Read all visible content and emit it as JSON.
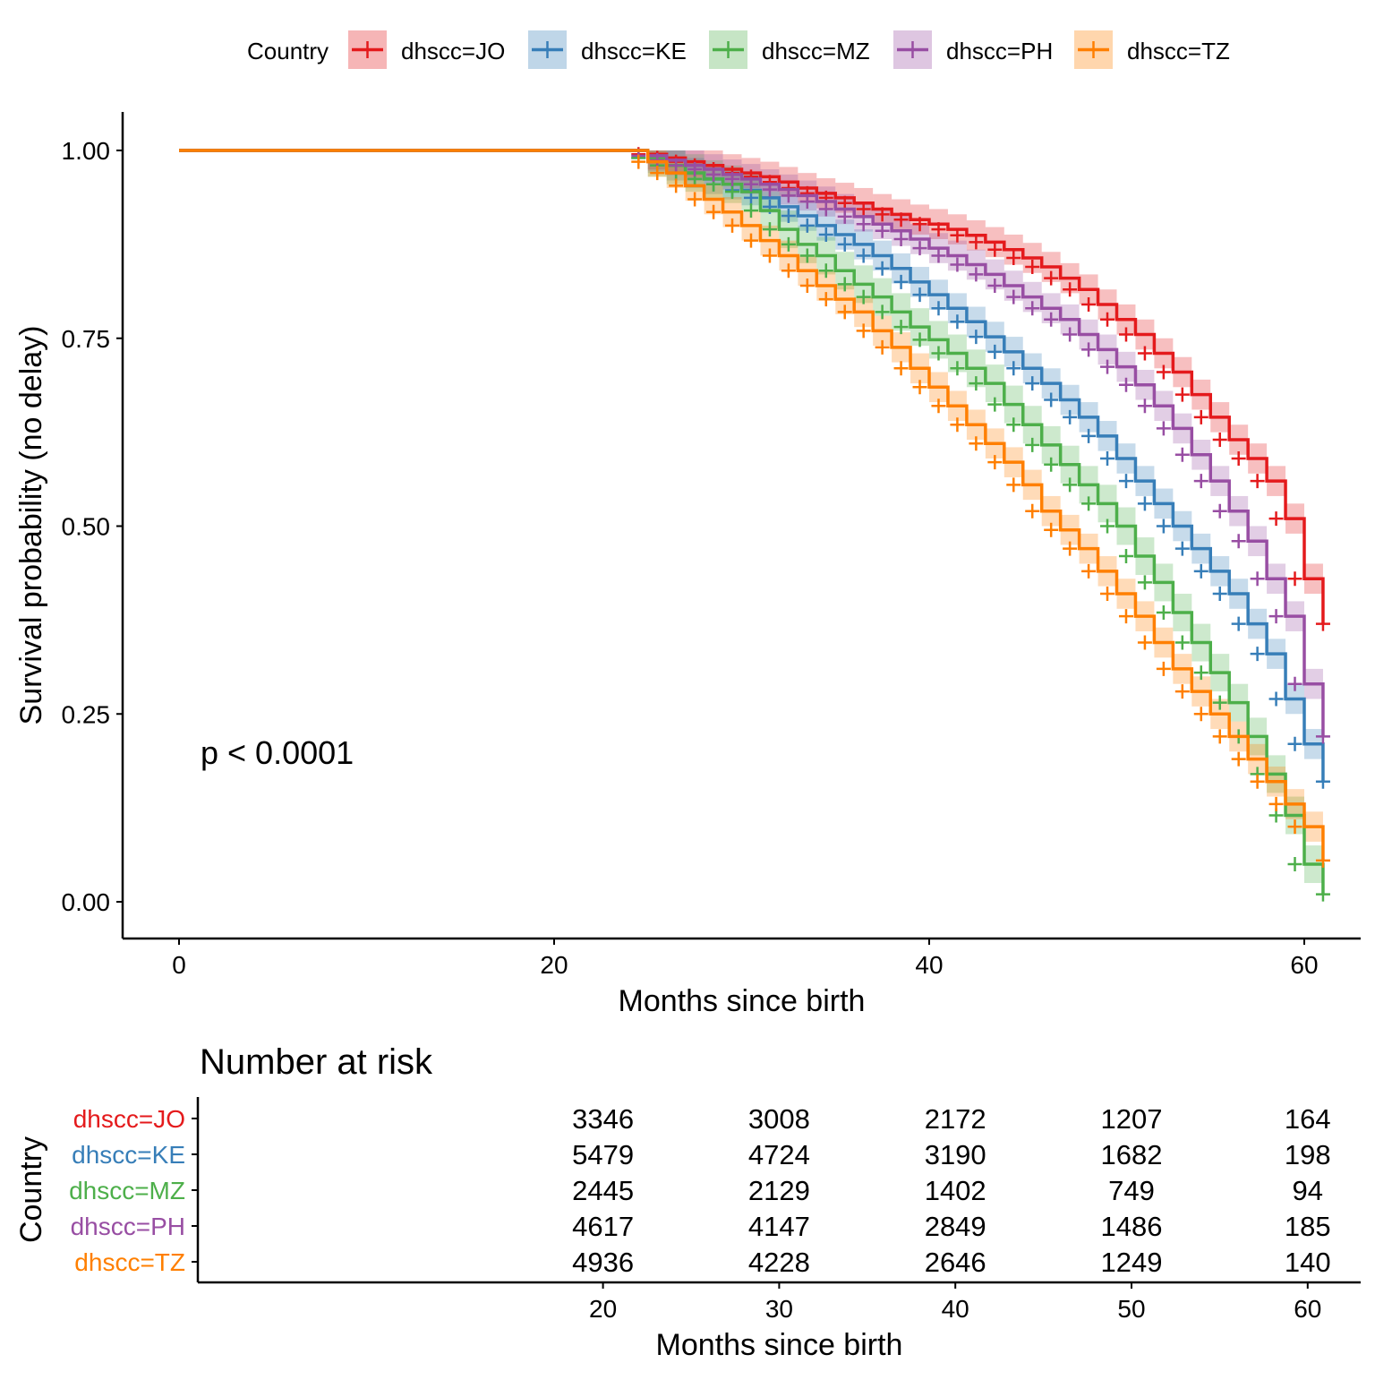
{
  "chart_data": [
    {
      "type": "line",
      "subtype": "kaplan-meier-step",
      "xlabel": "Months since birth",
      "ylabel": "Survival probability (no delay)",
      "xlim": [
        0,
        61
      ],
      "ylim": [
        0,
        1
      ],
      "x_ticks": [
        "0",
        "20",
        "40",
        "60"
      ],
      "y_ticks": [
        "0.00",
        "0.25",
        "0.50",
        "0.75",
        "1.00"
      ],
      "grid": false,
      "legend": {
        "title": "Country",
        "position": "top"
      },
      "annotation": "p < 0.0001",
      "confidence_bands": true,
      "series": [
        {
          "name": "dhscc=JO",
          "color": "#e41a1c",
          "x": [
            0,
            25,
            26,
            27,
            28,
            29,
            30,
            31,
            32,
            33,
            34,
            35,
            36,
            37,
            38,
            39,
            40,
            41,
            42,
            43,
            44,
            45,
            46,
            47,
            48,
            49,
            50,
            51,
            52,
            53,
            54,
            55,
            56,
            57,
            58,
            59,
            60,
            61
          ],
          "y": [
            1.0,
            0.995,
            0.99,
            0.985,
            0.98,
            0.975,
            0.97,
            0.965,
            0.958,
            0.95,
            0.943,
            0.937,
            0.93,
            0.922,
            0.915,
            0.908,
            0.902,
            0.895,
            0.887,
            0.878,
            0.868,
            0.857,
            0.845,
            0.83,
            0.815,
            0.795,
            0.775,
            0.755,
            0.73,
            0.705,
            0.675,
            0.645,
            0.615,
            0.59,
            0.56,
            0.51,
            0.43,
            0.37
          ],
          "band": 0.02
        },
        {
          "name": "dhscc=KE",
          "color": "#377eb8",
          "x": [
            0,
            25,
            26,
            27,
            28,
            29,
            30,
            31,
            32,
            33,
            34,
            35,
            36,
            37,
            38,
            39,
            40,
            41,
            42,
            43,
            44,
            45,
            46,
            47,
            48,
            49,
            50,
            51,
            52,
            53,
            54,
            55,
            56,
            57,
            58,
            59,
            60,
            61
          ],
          "y": [
            1.0,
            0.99,
            0.98,
            0.97,
            0.962,
            0.955,
            0.947,
            0.937,
            0.925,
            0.913,
            0.9,
            0.888,
            0.875,
            0.86,
            0.843,
            0.825,
            0.808,
            0.79,
            0.772,
            0.752,
            0.732,
            0.71,
            0.69,
            0.668,
            0.645,
            0.62,
            0.59,
            0.56,
            0.53,
            0.5,
            0.47,
            0.44,
            0.41,
            0.37,
            0.33,
            0.27,
            0.21,
            0.16
          ],
          "band": 0.02
        },
        {
          "name": "dhscc=MZ",
          "color": "#4daf4a",
          "x": [
            0,
            25,
            26,
            27,
            28,
            29,
            30,
            31,
            32,
            33,
            34,
            35,
            36,
            37,
            38,
            39,
            40,
            41,
            42,
            43,
            44,
            45,
            46,
            47,
            48,
            49,
            50,
            51,
            52,
            53,
            54,
            55,
            56,
            57,
            58,
            59,
            60,
            61
          ],
          "y": [
            1.0,
            0.99,
            0.98,
            0.97,
            0.962,
            0.955,
            0.945,
            0.92,
            0.895,
            0.875,
            0.86,
            0.84,
            0.822,
            0.805,
            0.785,
            0.765,
            0.748,
            0.73,
            0.71,
            0.69,
            0.662,
            0.635,
            0.608,
            0.582,
            0.555,
            0.53,
            0.5,
            0.46,
            0.425,
            0.385,
            0.345,
            0.305,
            0.265,
            0.22,
            0.17,
            0.115,
            0.05,
            0.01
          ],
          "band": 0.025
        },
        {
          "name": "dhscc=PH",
          "color": "#984ea3",
          "x": [
            0,
            25,
            26,
            27,
            28,
            29,
            30,
            31,
            32,
            33,
            34,
            35,
            36,
            37,
            38,
            39,
            40,
            41,
            42,
            43,
            44,
            45,
            46,
            47,
            48,
            49,
            50,
            51,
            52,
            53,
            54,
            55,
            56,
            57,
            58,
            59,
            60,
            61
          ],
          "y": [
            1.0,
            0.993,
            0.987,
            0.98,
            0.975,
            0.968,
            0.962,
            0.955,
            0.948,
            0.94,
            0.932,
            0.922,
            0.912,
            0.902,
            0.893,
            0.882,
            0.87,
            0.86,
            0.848,
            0.835,
            0.82,
            0.805,
            0.79,
            0.775,
            0.755,
            0.735,
            0.712,
            0.688,
            0.66,
            0.63,
            0.595,
            0.56,
            0.52,
            0.48,
            0.43,
            0.38,
            0.29,
            0.22
          ],
          "band": 0.02
        },
        {
          "name": "dhscc=TZ",
          "color": "#ff7f00",
          "x": [
            0,
            25,
            26,
            27,
            28,
            29,
            30,
            31,
            32,
            33,
            34,
            35,
            36,
            37,
            38,
            39,
            40,
            41,
            42,
            43,
            44,
            45,
            46,
            47,
            48,
            49,
            50,
            51,
            52,
            53,
            54,
            55,
            56,
            57,
            58,
            59,
            60,
            61
          ],
          "y": [
            1.0,
            0.985,
            0.97,
            0.953,
            0.935,
            0.918,
            0.9,
            0.88,
            0.86,
            0.84,
            0.82,
            0.802,
            0.785,
            0.76,
            0.738,
            0.71,
            0.685,
            0.66,
            0.635,
            0.61,
            0.585,
            0.555,
            0.52,
            0.495,
            0.47,
            0.44,
            0.41,
            0.38,
            0.345,
            0.31,
            0.28,
            0.25,
            0.22,
            0.19,
            0.16,
            0.13,
            0.1,
            0.055
          ],
          "band": 0.02
        }
      ]
    },
    {
      "type": "table",
      "title": "Number at risk",
      "xlabel": "Months since birth",
      "ylabel": "Country",
      "x_ticks": [
        "20",
        "30",
        "40",
        "50",
        "60"
      ],
      "rows": [
        {
          "name": "dhscc=JO",
          "color": "#e41a1c",
          "values": [
            "3346",
            "3008",
            "2172",
            "1207",
            "164"
          ]
        },
        {
          "name": "dhscc=KE",
          "color": "#377eb8",
          "values": [
            "5479",
            "4724",
            "3190",
            "1682",
            "198"
          ]
        },
        {
          "name": "dhscc=MZ",
          "color": "#4daf4a",
          "values": [
            "2445",
            "2129",
            "1402",
            "749",
            "94"
          ]
        },
        {
          "name": "dhscc=PH",
          "color": "#984ea3",
          "values": [
            "4617",
            "4147",
            "2849",
            "1486",
            "185"
          ]
        },
        {
          "name": "dhscc=TZ",
          "color": "#ff7f00",
          "values": [
            "4936",
            "4228",
            "2646",
            "1249",
            "140"
          ]
        }
      ]
    }
  ]
}
